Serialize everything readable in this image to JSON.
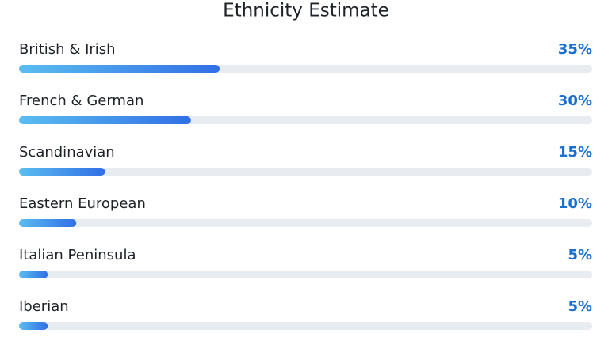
{
  "chart_data": {
    "type": "bar",
    "orientation": "horizontal",
    "title": "Ethnicity Estimate",
    "categories": [
      "British & Irish",
      "French & German",
      "Scandinavian",
      "Eastern European",
      "Italian Peninsula",
      "Iberian"
    ],
    "values": [
      35,
      30,
      15,
      10,
      5,
      5
    ],
    "value_labels": [
      "35%",
      "30%",
      "15%",
      "10%",
      "5%",
      "5%"
    ],
    "xlim": [
      0,
      100
    ],
    "gradient": [
      "#5bbdf0",
      "#316fe6"
    ],
    "track_color": "#e8ebef"
  }
}
